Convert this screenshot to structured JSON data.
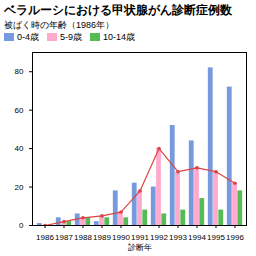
{
  "chart_data": {
    "type": "bar",
    "title": "ベラルーシにおける甲状腺がん診断症例数",
    "xlabel": "診断年",
    "legend_title": "被ばく時の年齢（1986年）",
    "categories": [
      "1986",
      "1987",
      "1988",
      "1989",
      "1990",
      "1991",
      "1992",
      "1993",
      "1994",
      "1995",
      "1996"
    ],
    "series": [
      {
        "name": "0-4歳",
        "color": "#7799dd",
        "values": [
          1,
          4,
          6,
          2,
          18,
          22,
          20,
          52,
          44,
          82,
          72
        ]
      },
      {
        "name": "5-9歳",
        "color": "#ffaacc",
        "values": [
          0,
          2,
          4,
          5,
          7,
          18,
          40,
          28,
          30,
          28,
          22
        ]
      },
      {
        "name": "10-14歳",
        "color": "#55bb55",
        "values": [
          0,
          2,
          4,
          4,
          4,
          8,
          6,
          8,
          14,
          8,
          18
        ]
      },
      {
        "type": "line",
        "color": "#dd4444",
        "marker": "o",
        "values": [
          0,
          2,
          4,
          5,
          7,
          18,
          40,
          28,
          30,
          28,
          22
        ]
      }
    ],
    "ylim": [
      0,
      90
    ],
    "yticks": [
      0,
      20,
      40,
      60,
      80
    ],
    "grid": false,
    "legend": "upper left"
  }
}
